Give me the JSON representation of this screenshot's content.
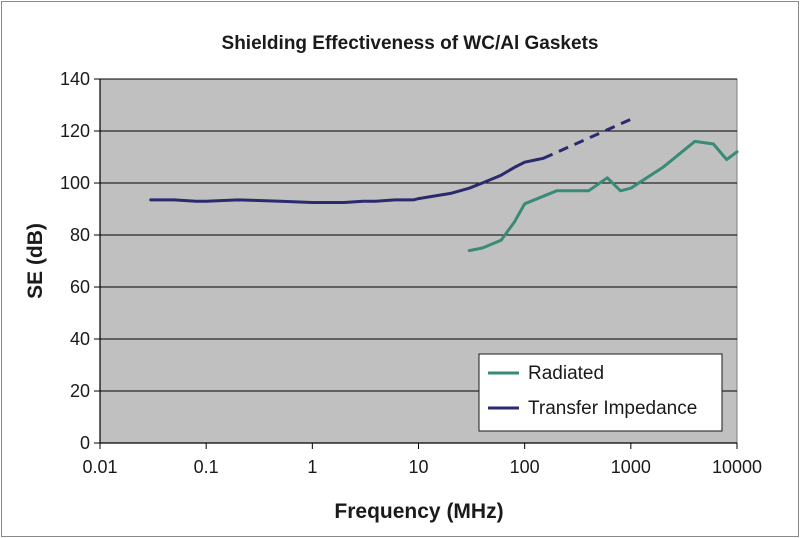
{
  "chart_data": {
    "type": "line",
    "title": "Shielding Effectiveness of WC/Al Gaskets",
    "xlabel": "Frequency (MHz)",
    "ylabel": "SE (dB)",
    "xscale": "log",
    "xlim": [
      0.01,
      10000
    ],
    "ylim": [
      0,
      140
    ],
    "x_ticks": [
      "0.01",
      "0.1",
      "1",
      "10",
      "100",
      "1000",
      "10000"
    ],
    "y_ticks": [
      "0",
      "20",
      "40",
      "60",
      "80",
      "100",
      "120",
      "140"
    ],
    "grid": "horizontal",
    "plot_background": "#c0c0c0",
    "legend_position": "bottom-right",
    "series": [
      {
        "name": "Radiated",
        "color": "#3a8a78",
        "style": "solid",
        "points": [
          [
            30,
            74
          ],
          [
            40,
            75
          ],
          [
            60,
            78
          ],
          [
            80,
            85
          ],
          [
            100,
            92
          ],
          [
            200,
            97
          ],
          [
            400,
            97
          ],
          [
            600,
            102
          ],
          [
            800,
            97
          ],
          [
            1000,
            98
          ],
          [
            2000,
            106
          ],
          [
            4000,
            116
          ],
          [
            6000,
            115
          ],
          [
            8000,
            109
          ],
          [
            10000,
            112
          ]
        ]
      },
      {
        "name": "Transfer Impedance",
        "color": "#2a2a6e",
        "style": "solid",
        "points": [
          [
            0.03,
            93.5
          ],
          [
            0.05,
            93.5
          ],
          [
            0.08,
            93
          ],
          [
            0.1,
            93
          ],
          [
            0.2,
            93.5
          ],
          [
            0.5,
            93
          ],
          [
            1,
            92.5
          ],
          [
            2,
            92.5
          ],
          [
            3,
            93
          ],
          [
            4,
            93
          ],
          [
            6,
            93.5
          ],
          [
            9,
            93.5
          ],
          [
            10,
            94
          ],
          [
            20,
            96
          ],
          [
            30,
            98
          ],
          [
            40,
            100
          ],
          [
            60,
            103
          ],
          [
            80,
            106
          ],
          [
            100,
            108
          ],
          [
            130,
            109
          ],
          [
            150,
            109.5
          ]
        ],
        "extrapolation": {
          "style": "dashed",
          "points": [
            [
              150,
              109.5
            ],
            [
              1000,
              124.5
            ]
          ]
        }
      }
    ]
  }
}
